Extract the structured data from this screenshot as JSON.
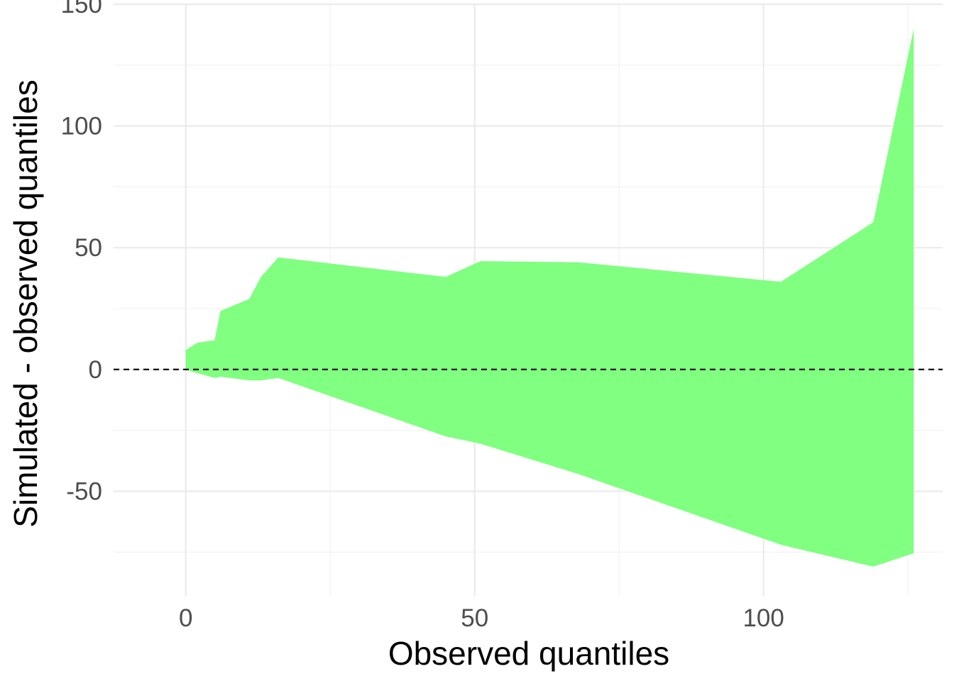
{
  "chart_data": {
    "type": "area",
    "title": "",
    "xlabel": "Observed quantiles",
    "ylabel": "Simulated - observed quantiles",
    "xlim": [
      -12.5,
      131
    ],
    "ylim": [
      -93,
      150
    ],
    "x_ticks": [
      0,
      50,
      100
    ],
    "x_tick_labels": [
      "0",
      "50",
      "100"
    ],
    "y_ticks": [
      -50,
      0,
      50,
      100,
      150
    ],
    "y_tick_labels": [
      "-50",
      "0",
      "50",
      "100",
      "150"
    ],
    "grid": true,
    "reference_line": {
      "y": 0,
      "style": "dashed",
      "color": "#000000"
    },
    "series": [
      {
        "fill": "#80ff80",
        "upper": [
          {
            "x": 0,
            "y": 8
          },
          {
            "x": 2,
            "y": 11
          },
          {
            "x": 5,
            "y": 12
          },
          {
            "x": 6,
            "y": 24
          },
          {
            "x": 11,
            "y": 29
          },
          {
            "x": 13,
            "y": 38
          },
          {
            "x": 16,
            "y": 46
          },
          {
            "x": 45,
            "y": 38
          },
          {
            "x": 51,
            "y": 44.5
          },
          {
            "x": 68,
            "y": 44
          },
          {
            "x": 103,
            "y": 36
          },
          {
            "x": 119,
            "y": 60.5
          },
          {
            "x": 126,
            "y": 140
          }
        ],
        "lower": [
          {
            "x": 0,
            "y": 0
          },
          {
            "x": 2,
            "y": -1.5
          },
          {
            "x": 5,
            "y": -3.5
          },
          {
            "x": 6,
            "y": -3
          },
          {
            "x": 11,
            "y": -4.5
          },
          {
            "x": 13,
            "y": -4.5
          },
          {
            "x": 16,
            "y": -3.5
          },
          {
            "x": 45,
            "y": -27.5
          },
          {
            "x": 51,
            "y": -30.5
          },
          {
            "x": 68,
            "y": -43
          },
          {
            "x": 103,
            "y": -72
          },
          {
            "x": 119,
            "y": -81
          },
          {
            "x": 126,
            "y": -75.5
          }
        ]
      }
    ]
  }
}
